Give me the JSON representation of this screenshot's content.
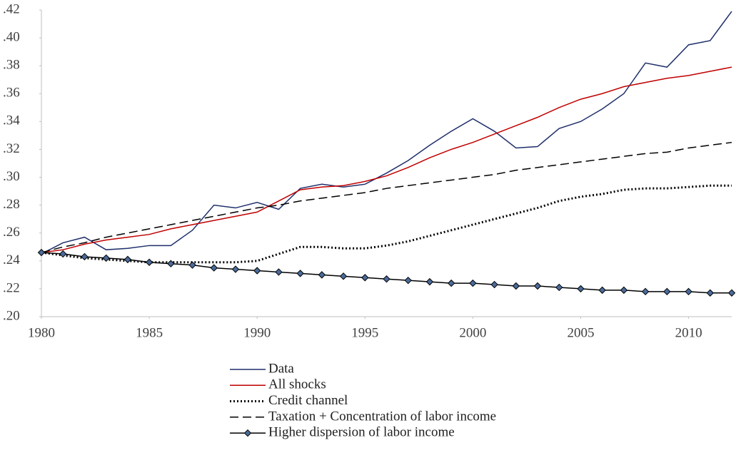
{
  "chart_data": {
    "type": "line",
    "x": [
      1980,
      1981,
      1982,
      1983,
      1984,
      1985,
      1986,
      1987,
      1988,
      1989,
      1990,
      1991,
      1992,
      1993,
      1994,
      1995,
      1996,
      1997,
      1998,
      1999,
      2000,
      2001,
      2002,
      2003,
      2004,
      2005,
      2006,
      2007,
      2008,
      2009,
      2010,
      2011,
      2012
    ],
    "xlim": [
      1980,
      2012
    ],
    "xticks": [
      1980,
      1985,
      1990,
      1995,
      2000,
      2005,
      2010
    ],
    "ylim": [
      0.2,
      0.42
    ],
    "yticks": [
      {
        "value": 0.2,
        "label": ".20"
      },
      {
        "value": 0.22,
        "label": ".22"
      },
      {
        "value": 0.24,
        "label": ".24"
      },
      {
        "value": 0.26,
        "label": ".26"
      },
      {
        "value": 0.28,
        "label": ".28"
      },
      {
        "value": 0.3,
        "label": ".30"
      },
      {
        "value": 0.32,
        "label": ".32"
      },
      {
        "value": 0.34,
        "label": ".34"
      },
      {
        "value": 0.36,
        "label": ".36"
      },
      {
        "value": 0.38,
        "label": ".38"
      },
      {
        "value": 0.4,
        "label": ".40"
      },
      {
        "value": 0.42,
        "label": ".42"
      }
    ],
    "grid": false,
    "legend": "bottom",
    "series": [
      {
        "name": "Data",
        "color": "#1f2f6b",
        "line_style": "solid",
        "values": [
          0.245,
          0.253,
          0.257,
          0.248,
          0.249,
          0.251,
          0.251,
          0.262,
          0.28,
          0.278,
          0.282,
          0.277,
          0.292,
          0.295,
          0.293,
          0.295,
          0.303,
          0.312,
          0.323,
          0.333,
          0.342,
          0.333,
          0.321,
          0.322,
          0.335,
          0.34,
          0.349,
          0.36,
          0.382,
          0.379,
          0.395,
          0.398,
          0.419
        ]
      },
      {
        "name": "All shocks",
        "color": "#c00000",
        "line_style": "solid",
        "values": [
          0.246,
          0.248,
          0.252,
          0.255,
          0.257,
          0.259,
          0.263,
          0.266,
          0.269,
          0.272,
          0.275,
          0.283,
          0.291,
          0.293,
          0.294,
          0.297,
          0.301,
          0.307,
          0.314,
          0.32,
          0.325,
          0.331,
          0.337,
          0.343,
          0.35,
          0.356,
          0.36,
          0.365,
          0.368,
          0.371,
          0.373,
          0.376,
          0.379
        ]
      },
      {
        "name": "Credit channel",
        "color": "#000000",
        "line_style": "dotted",
        "values": [
          0.246,
          0.244,
          0.242,
          0.241,
          0.24,
          0.239,
          0.239,
          0.239,
          0.239,
          0.239,
          0.24,
          0.245,
          0.25,
          0.25,
          0.249,
          0.249,
          0.251,
          0.254,
          0.258,
          0.262,
          0.266,
          0.27,
          0.274,
          0.278,
          0.283,
          0.286,
          0.288,
          0.291,
          0.292,
          0.292,
          0.293,
          0.294,
          0.294
        ]
      },
      {
        "name": "Taxation + Concentration of labor income",
        "color": "#000000",
        "line_style": "dashed",
        "values": [
          0.246,
          0.25,
          0.253,
          0.257,
          0.26,
          0.263,
          0.266,
          0.269,
          0.272,
          0.275,
          0.278,
          0.28,
          0.283,
          0.285,
          0.287,
          0.289,
          0.292,
          0.294,
          0.296,
          0.298,
          0.3,
          0.302,
          0.305,
          0.307,
          0.309,
          0.311,
          0.313,
          0.315,
          0.317,
          0.318,
          0.321,
          0.323,
          0.325
        ]
      },
      {
        "name": "Higher dispersion of labor income",
        "color": "#000000",
        "line_style": "solid",
        "marker": "diamond",
        "marker_color": "#4a6b9a",
        "values": [
          0.246,
          0.245,
          0.243,
          0.242,
          0.241,
          0.239,
          0.238,
          0.237,
          0.235,
          0.234,
          0.233,
          0.232,
          0.231,
          0.23,
          0.229,
          0.228,
          0.227,
          0.226,
          0.225,
          0.224,
          0.224,
          0.223,
          0.222,
          0.222,
          0.221,
          0.22,
          0.219,
          0.219,
          0.218,
          0.218,
          0.218,
          0.217,
          0.217
        ]
      }
    ]
  }
}
